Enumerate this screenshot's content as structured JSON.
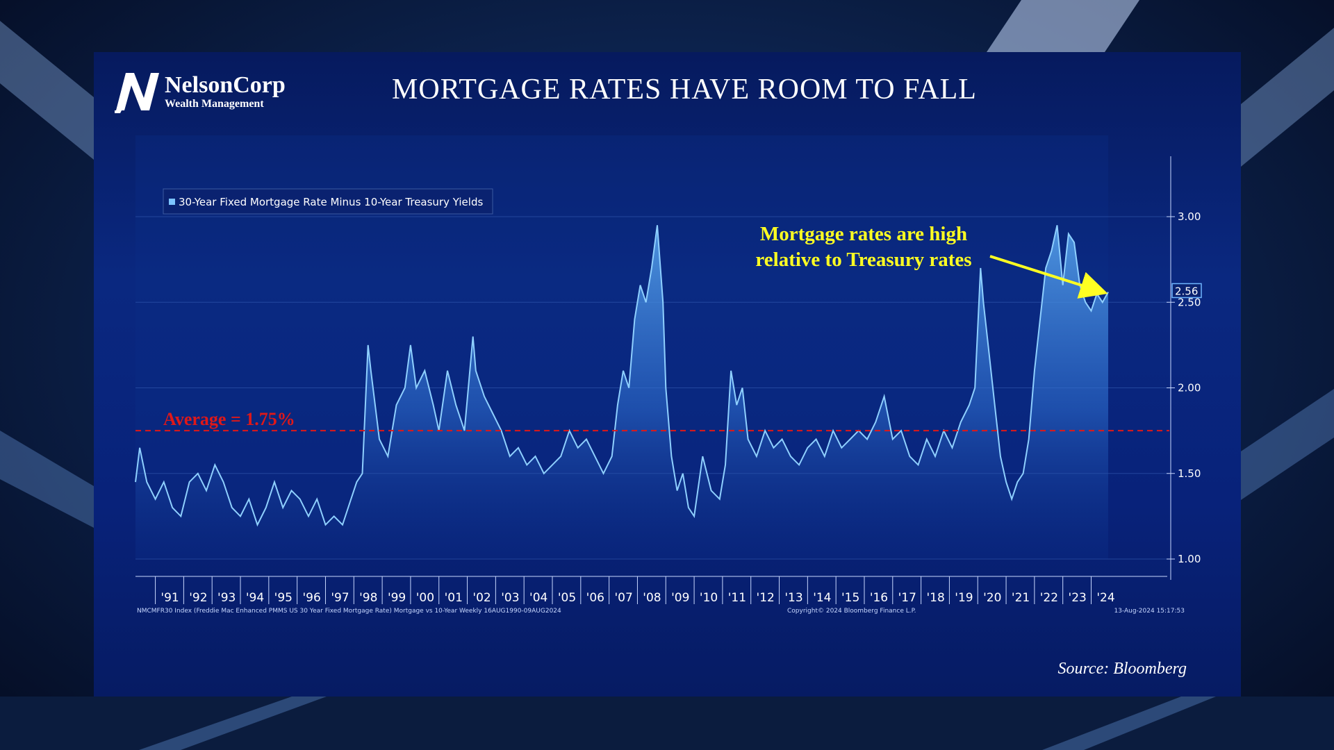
{
  "logo": {
    "name": "NelsonCorp",
    "subtitle": "Wealth Management",
    "icon": "nelsoncorp-n-logo"
  },
  "slide_title": "MORTGAGE RATES HAVE ROOM TO FALL",
  "source": "Source: Bloomberg",
  "colors": {
    "series": "#7cc4ff",
    "average_line": "#e01818",
    "annotation": "#ffff22",
    "panel": "#0a2880"
  },
  "chart_data": {
    "type": "area",
    "legend": "30-Year Fixed Mortgage Rate Minus 10-Year Treasury Yields",
    "legend_placement": "top-left",
    "x_start": 1990.3,
    "x_end": 2024.6,
    "x_tick_labels": [
      "'91",
      "'92",
      "'93",
      "'94",
      "'95",
      "'96",
      "'97",
      "'98",
      "'99",
      "'00",
      "'01",
      "'02",
      "'03",
      "'04",
      "'05",
      "'06",
      "'07",
      "'08",
      "'09",
      "'10",
      "'11",
      "'12",
      "'13",
      "'14",
      "'15",
      "'16",
      "'17",
      "'18",
      "'19",
      "'20",
      "'21",
      "'22",
      "'23",
      "'24"
    ],
    "x_tick_years": [
      1991,
      1992,
      1993,
      1994,
      1995,
      1996,
      1997,
      1998,
      1999,
      2000,
      2001,
      2002,
      2003,
      2004,
      2005,
      2006,
      2007,
      2008,
      2009,
      2010,
      2011,
      2012,
      2013,
      2014,
      2015,
      2016,
      2017,
      2018,
      2019,
      2020,
      2021,
      2022,
      2023,
      2024
    ],
    "y_ticks": [
      1.0,
      1.5,
      2.0,
      2.5,
      3.0
    ],
    "y_tick_labels": [
      "1.00",
      "1.50",
      "2.00",
      "2.50",
      "3.00"
    ],
    "y_axis_side": "right",
    "grid": "horizontal",
    "series": [
      {
        "name": "30-Year Fixed Mortgage Rate Minus 10-Year Treasury Yields",
        "x": [
          1990.3,
          1990.45,
          1990.7,
          1991.0,
          1991.3,
          1991.6,
          1991.9,
          1992.2,
          1992.5,
          1992.8,
          1993.1,
          1993.4,
          1993.7,
          1994.0,
          1994.3,
          1994.6,
          1994.9,
          1995.2,
          1995.5,
          1995.8,
          1996.1,
          1996.4,
          1996.7,
          1997.0,
          1997.3,
          1997.6,
          1997.9,
          1998.1,
          1998.3,
          1998.5,
          1998.6,
          1998.9,
          1999.2,
          1999.5,
          1999.8,
          2000.0,
          2000.2,
          2000.5,
          2000.8,
          2001.0,
          2001.3,
          2001.6,
          2001.9,
          2002.2,
          2002.3,
          2002.6,
          2002.9,
          2003.2,
          2003.5,
          2003.8,
          2004.1,
          2004.4,
          2004.7,
          2005.0,
          2005.3,
          2005.6,
          2005.9,
          2006.2,
          2006.5,
          2006.8,
          2007.1,
          2007.3,
          2007.5,
          2007.7,
          2007.9,
          2008.1,
          2008.3,
          2008.5,
          2008.7,
          2008.9,
          2009.0,
          2009.2,
          2009.4,
          2009.6,
          2009.8,
          2010.0,
          2010.3,
          2010.6,
          2010.9,
          2011.1,
          2011.3,
          2011.5,
          2011.7,
          2011.9,
          2012.2,
          2012.5,
          2012.8,
          2013.1,
          2013.4,
          2013.7,
          2014.0,
          2014.3,
          2014.6,
          2014.9,
          2015.2,
          2015.5,
          2015.8,
          2016.1,
          2016.4,
          2016.7,
          2017.0,
          2017.3,
          2017.6,
          2017.9,
          2018.2,
          2018.5,
          2018.8,
          2019.1,
          2019.4,
          2019.7,
          2019.9,
          2020.1,
          2020.2,
          2020.4,
          2020.6,
          2020.8,
          2021.0,
          2021.2,
          2021.4,
          2021.6,
          2021.8,
          2022.0,
          2022.2,
          2022.4,
          2022.6,
          2022.8,
          2023.0,
          2023.2,
          2023.4,
          2023.6,
          2023.8,
          2024.0,
          2024.2,
          2024.4,
          2024.6
        ],
        "values": [
          1.45,
          1.65,
          1.45,
          1.35,
          1.45,
          1.3,
          1.25,
          1.45,
          1.5,
          1.4,
          1.55,
          1.45,
          1.3,
          1.25,
          1.35,
          1.2,
          1.3,
          1.45,
          1.3,
          1.4,
          1.35,
          1.25,
          1.35,
          1.2,
          1.25,
          1.2,
          1.35,
          1.45,
          1.5,
          2.25,
          2.1,
          1.7,
          1.6,
          1.9,
          2.0,
          2.25,
          2.0,
          2.1,
          1.9,
          1.75,
          2.1,
          1.9,
          1.75,
          2.3,
          2.1,
          1.95,
          1.85,
          1.75,
          1.6,
          1.65,
          1.55,
          1.6,
          1.5,
          1.55,
          1.6,
          1.75,
          1.65,
          1.7,
          1.6,
          1.5,
          1.6,
          1.9,
          2.1,
          2.0,
          2.4,
          2.6,
          2.5,
          2.7,
          2.95,
          2.5,
          2.0,
          1.6,
          1.4,
          1.5,
          1.3,
          1.25,
          1.6,
          1.4,
          1.35,
          1.55,
          2.1,
          1.9,
          2.0,
          1.7,
          1.6,
          1.75,
          1.65,
          1.7,
          1.6,
          1.55,
          1.65,
          1.7,
          1.6,
          1.75,
          1.65,
          1.7,
          1.75,
          1.7,
          1.8,
          1.95,
          1.7,
          1.75,
          1.6,
          1.55,
          1.7,
          1.6,
          1.75,
          1.65,
          1.8,
          1.9,
          2.0,
          2.7,
          2.5,
          2.2,
          1.9,
          1.6,
          1.45,
          1.35,
          1.45,
          1.5,
          1.7,
          2.1,
          2.4,
          2.7,
          2.8,
          2.95,
          2.6,
          2.9,
          2.85,
          2.6,
          2.5,
          2.45,
          2.55,
          2.5,
          2.56
        ]
      }
    ],
    "average_line": {
      "value": 1.75,
      "label": "Average = 1.75%"
    },
    "last_value_label": "2.56",
    "annotation": {
      "text_line1": "Mortgage rates are high",
      "text_line2": "relative to Treasury rates"
    },
    "footer_left": "NMCMFR30 Index (Freddie Mac Enhanced PMMS US 30 Year Fixed Mortgage Rate) Mortgage vs 10-Year  Weekly 16AUG1990-09AUG2024",
    "footer_center": "Copyright© 2024 Bloomberg Finance L.P.",
    "footer_right": "13-Aug-2024 15:17:53"
  }
}
